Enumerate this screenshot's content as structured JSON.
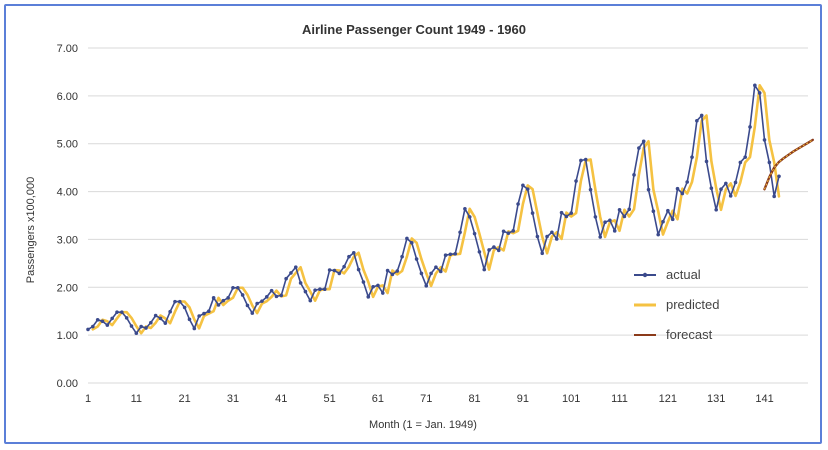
{
  "chart_data": {
    "type": "line",
    "title": "Airline Passenger Count 1949 - 1960",
    "xlabel": "Month  (1 = Jan. 1949)",
    "ylabel": "Passengers x100,000",
    "xlim": [
      1,
      150
    ],
    "ylim": [
      0,
      7
    ],
    "x_ticks": [
      "1",
      "11",
      "21",
      "31",
      "41",
      "51",
      "61",
      "71",
      "81",
      "91",
      "101",
      "111",
      "121",
      "131",
      "141"
    ],
    "y_ticks": [
      "0.00",
      "1.00",
      "2.00",
      "3.00",
      "4.00",
      "5.00",
      "6.00",
      "7.00"
    ],
    "grid": "horizontal",
    "legend_position": "right",
    "series": [
      {
        "name": "actual",
        "color": "#3b4a8c",
        "marker": "dot",
        "x_start": 1,
        "values": [
          1.12,
          1.18,
          1.32,
          1.29,
          1.21,
          1.35,
          1.48,
          1.48,
          1.36,
          1.19,
          1.04,
          1.18,
          1.15,
          1.26,
          1.41,
          1.35,
          1.25,
          1.49,
          1.7,
          1.7,
          1.58,
          1.33,
          1.14,
          1.4,
          1.45,
          1.5,
          1.78,
          1.63,
          1.72,
          1.78,
          1.99,
          1.99,
          1.84,
          1.62,
          1.46,
          1.66,
          1.71,
          1.8,
          1.93,
          1.81,
          1.83,
          2.18,
          2.3,
          2.42,
          2.09,
          1.91,
          1.72,
          1.94,
          1.96,
          1.96,
          2.36,
          2.35,
          2.29,
          2.43,
          2.64,
          2.72,
          2.37,
          2.11,
          1.8,
          2.01,
          2.04,
          1.88,
          2.35,
          2.27,
          2.34,
          2.64,
          3.02,
          2.93,
          2.59,
          2.29,
          2.03,
          2.29,
          2.42,
          2.33,
          2.67,
          2.69,
          2.7,
          3.15,
          3.64,
          3.47,
          3.12,
          2.74,
          2.37,
          2.78,
          2.84,
          2.77,
          3.17,
          3.13,
          3.18,
          3.74,
          4.13,
          4.05,
          3.55,
          3.06,
          2.71,
          3.06,
          3.15,
          3.01,
          3.56,
          3.48,
          3.55,
          4.22,
          4.65,
          4.67,
          4.04,
          3.47,
          3.05,
          3.36,
          3.4,
          3.18,
          3.62,
          3.48,
          3.63,
          4.35,
          4.91,
          5.05,
          4.04,
          3.59,
          3.1,
          3.37,
          3.6,
          3.42,
          4.06,
          3.96,
          4.2,
          4.72,
          5.48,
          5.59,
          4.63,
          4.07,
          3.62,
          4.05,
          4.17,
          3.91,
          4.19,
          4.61,
          4.72,
          5.35,
          6.22,
          6.06,
          5.08,
          4.61,
          3.9,
          4.32
        ]
      },
      {
        "name": "predicted",
        "color": "#f5c242",
        "x_start": 2,
        "values": [
          1.12,
          1.18,
          1.32,
          1.29,
          1.21,
          1.35,
          1.48,
          1.48,
          1.36,
          1.19,
          1.04,
          1.18,
          1.15,
          1.26,
          1.41,
          1.35,
          1.25,
          1.49,
          1.7,
          1.7,
          1.58,
          1.33,
          1.14,
          1.4,
          1.45,
          1.5,
          1.78,
          1.63,
          1.72,
          1.78,
          1.99,
          1.99,
          1.84,
          1.62,
          1.46,
          1.66,
          1.71,
          1.8,
          1.93,
          1.81,
          1.83,
          2.18,
          2.3,
          2.42,
          2.09,
          1.91,
          1.72,
          1.94,
          1.96,
          1.96,
          2.36,
          2.35,
          2.29,
          2.43,
          2.64,
          2.72,
          2.37,
          2.11,
          1.8,
          2.01,
          2.04,
          1.88,
          2.35,
          2.27,
          2.34,
          2.64,
          3.02,
          2.93,
          2.59,
          2.29,
          2.03,
          2.29,
          2.42,
          2.33,
          2.67,
          2.69,
          2.7,
          3.15,
          3.64,
          3.47,
          3.12,
          2.74,
          2.37,
          2.78,
          2.84,
          2.77,
          3.17,
          3.13,
          3.18,
          3.74,
          4.13,
          4.05,
          3.55,
          3.06,
          2.71,
          3.06,
          3.15,
          3.01,
          3.56,
          3.48,
          3.55,
          4.22,
          4.65,
          4.67,
          4.04,
          3.47,
          3.05,
          3.36,
          3.4,
          3.18,
          3.62,
          3.48,
          3.63,
          4.35,
          4.91,
          5.05,
          4.04,
          3.59,
          3.1,
          3.37,
          3.6,
          3.42,
          4.06,
          3.96,
          4.2,
          4.72,
          5.48,
          5.59,
          4.63,
          4.07,
          3.62,
          4.05,
          4.17,
          3.91,
          4.19,
          4.61,
          4.72,
          5.35,
          6.22,
          6.06,
          5.08,
          4.61,
          3.9
        ]
      },
      {
        "name": "forecast",
        "color": "#8b3a1a",
        "x_start": 141,
        "values": [
          4.05,
          4.3,
          4.5,
          4.62,
          4.7,
          4.77,
          4.84,
          4.9,
          4.96,
          5.02,
          5.08
        ]
      }
    ]
  }
}
